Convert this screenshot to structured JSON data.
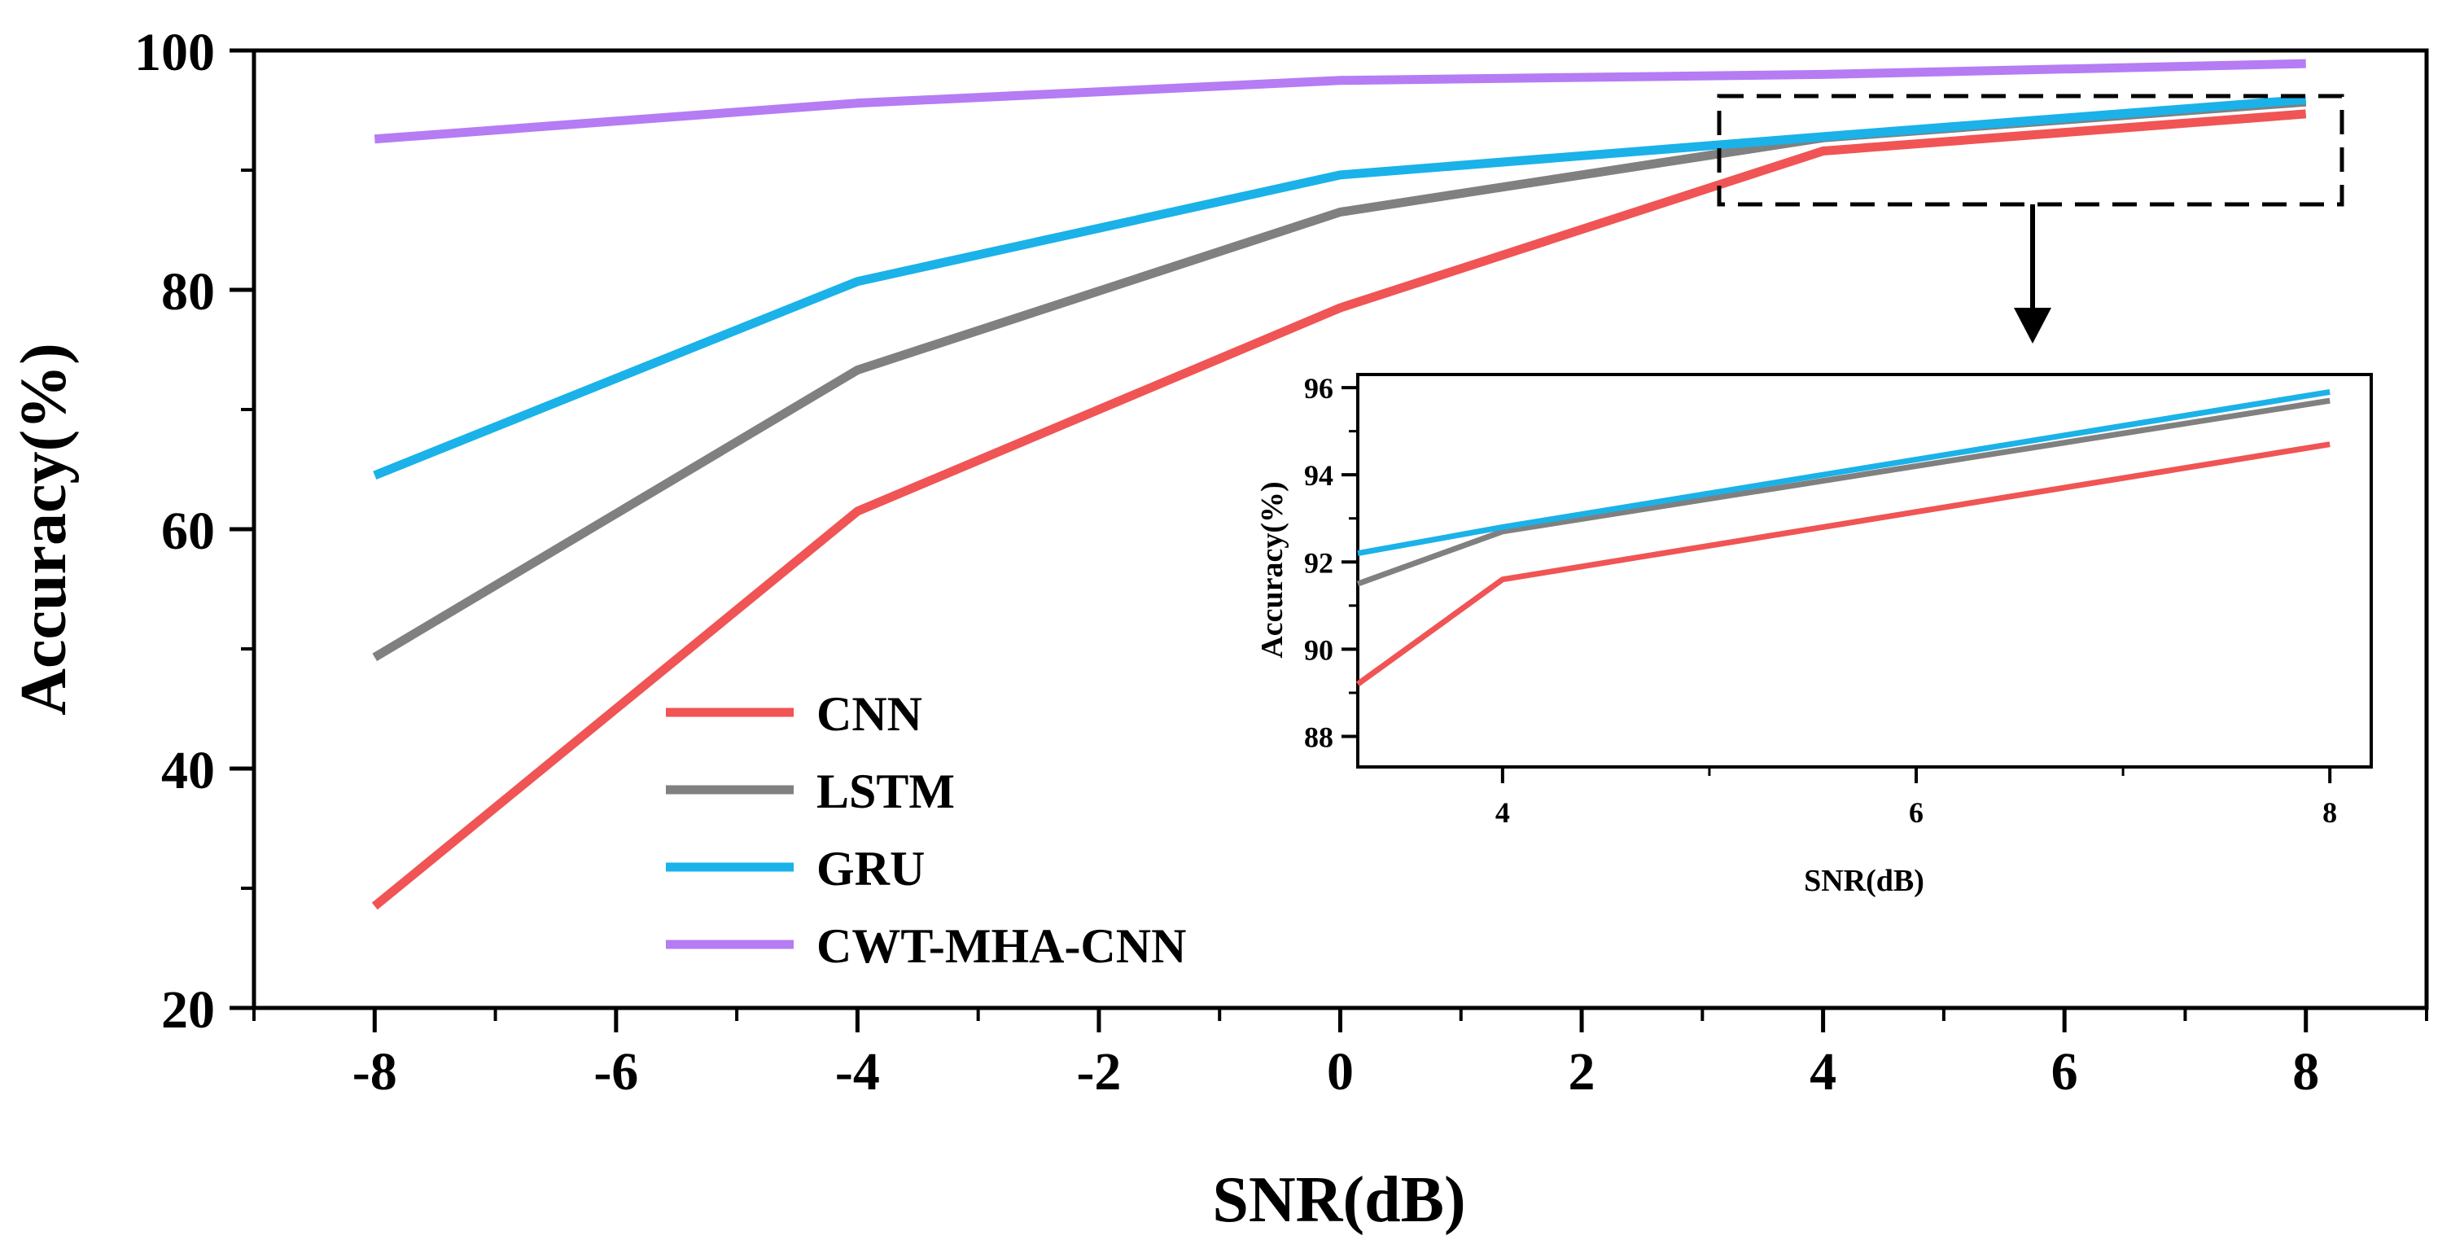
{
  "chart_data": [
    {
      "type": "line",
      "xlabel": "SNR(dB)",
      "ylabel": "Accuracy(%)",
      "xlim": [
        -9,
        9
      ],
      "ylim": [
        20,
        100
      ],
      "xticks": [
        -8,
        -6,
        -4,
        -2,
        0,
        2,
        4,
        6,
        8
      ],
      "yticks": [
        20,
        40,
        60,
        80,
        100
      ],
      "xtick_labels": [
        "-8",
        "-6",
        "-4",
        "-2",
        "0",
        "2",
        "4",
        "6",
        "8"
      ],
      "ytick_labels": [
        "20",
        "40",
        "60",
        "80",
        "100"
      ],
      "grid": false,
      "legend": "lower-left",
      "x": [
        -8,
        -4,
        0,
        4,
        8
      ],
      "series": [
        {
          "name": "CNN",
          "color": "#f05454",
          "values": [
            28.5,
            61.5,
            78.5,
            91.6,
            94.7
          ]
        },
        {
          "name": "LSTM",
          "color": "#808080",
          "values": [
            49.3,
            73.3,
            86.5,
            92.7,
            95.7
          ]
        },
        {
          "name": "GRU",
          "color": "#1ab2e8",
          "values": [
            64.5,
            80.7,
            89.6,
            92.8,
            95.9
          ]
        },
        {
          "name": "CWT-MHA-CNN",
          "color": "#b57cf4",
          "values": [
            92.6,
            95.6,
            97.5,
            98.0,
            98.9
          ]
        }
      ]
    },
    {
      "type": "line",
      "xlabel": "SNR(dB)",
      "ylabel": "Accuracy(%)",
      "xlim": [
        3.3,
        8.2
      ],
      "ylim": [
        87.3,
        96.3
      ],
      "xticks": [
        4,
        6,
        8
      ],
      "yticks": [
        88,
        90,
        92,
        94,
        96
      ],
      "xtick_labels": [
        "4",
        "6",
        "8"
      ],
      "ytick_labels": [
        "88",
        "90",
        "92",
        "94",
        "96"
      ],
      "grid": false,
      "x": [
        3.3,
        4,
        8
      ],
      "series": [
        {
          "name": "CNN",
          "color": "#f05454",
          "values": [
            89.2,
            91.6,
            94.7
          ]
        },
        {
          "name": "LSTM",
          "color": "#808080",
          "values": [
            91.5,
            92.7,
            95.7
          ]
        },
        {
          "name": "GRU",
          "color": "#1ab2e8",
          "values": [
            92.2,
            92.8,
            95.9
          ]
        }
      ]
    }
  ]
}
